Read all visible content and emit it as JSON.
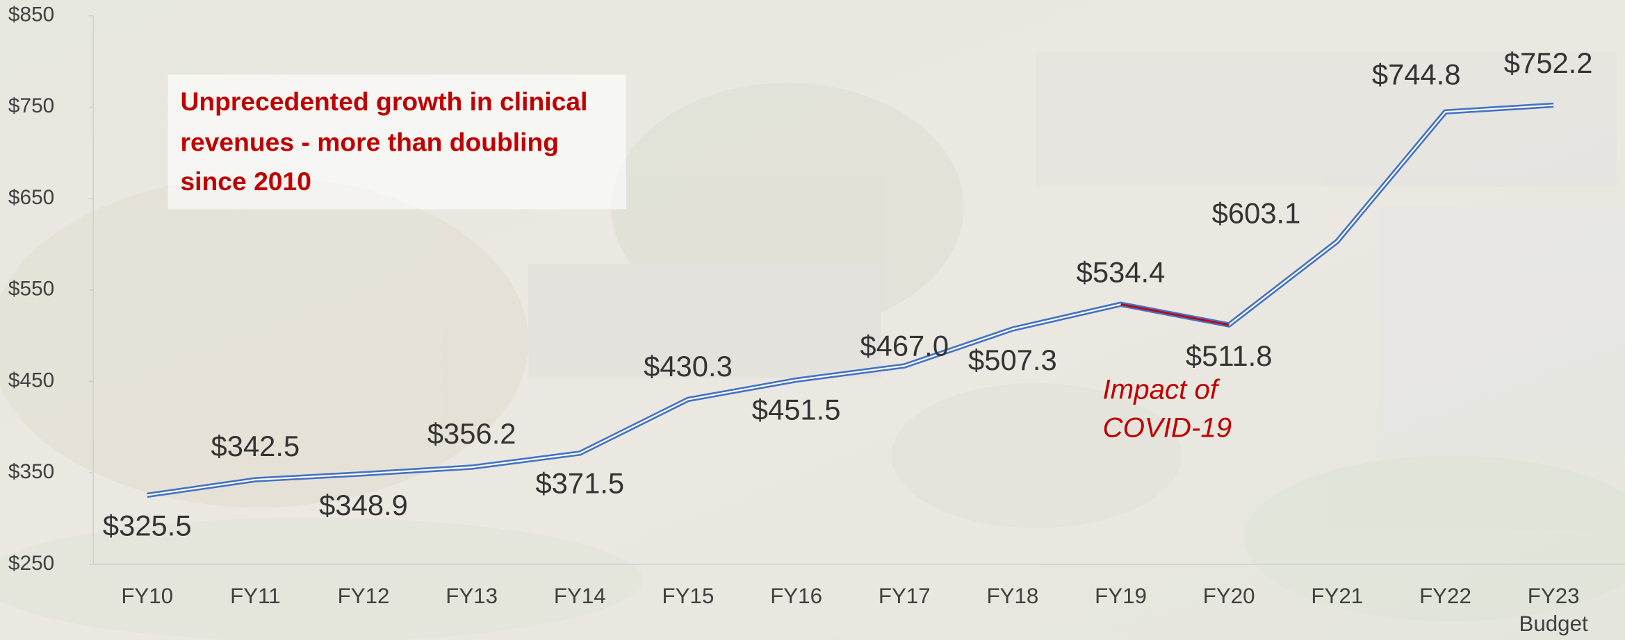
{
  "chart_data": {
    "type": "line",
    "categories": [
      "FY10",
      "FY11",
      "FY12",
      "FY13",
      "FY14",
      "FY15",
      "FY16",
      "FY17",
      "FY18",
      "FY19",
      "FY20",
      "FY21",
      "FY22",
      "FY23"
    ],
    "category_note": "Budget",
    "series": [
      {
        "name": "Clinical revenues",
        "color": "#4472c4",
        "values": [
          325.5,
          342.5,
          348.9,
          356.2,
          371.5,
          430.3,
          451.5,
          467.0,
          507.3,
          534.4,
          511.8,
          603.1,
          744.8,
          752.2
        ],
        "value_labels": [
          "$325.5",
          "$342.5",
          "$348.9",
          "$356.2",
          "$371.5",
          "$430.3",
          "$451.5",
          "$467.0",
          "$507.3",
          "$534.4",
          "$511.8",
          "$603.1",
          "$744.8",
          "$752.2"
        ]
      }
    ],
    "ylim": [
      250,
      850
    ],
    "yticks": [
      {
        "value": 250,
        "label": "$250"
      },
      {
        "value": 350,
        "label": "$350"
      },
      {
        "value": 450,
        "label": "$450"
      },
      {
        "value": 550,
        "label": "$550"
      },
      {
        "value": 650,
        "label": "$650"
      },
      {
        "value": 750,
        "label": "$750"
      },
      {
        "value": 850,
        "label": "$850"
      }
    ],
    "callout": [
      "Unprecedented growth in clinical",
      "revenues - more than doubling",
      "since 2010"
    ],
    "covid_annotation": {
      "lines": [
        "Impact of",
        "COVID-19"
      ],
      "color": "#c00000"
    }
  }
}
